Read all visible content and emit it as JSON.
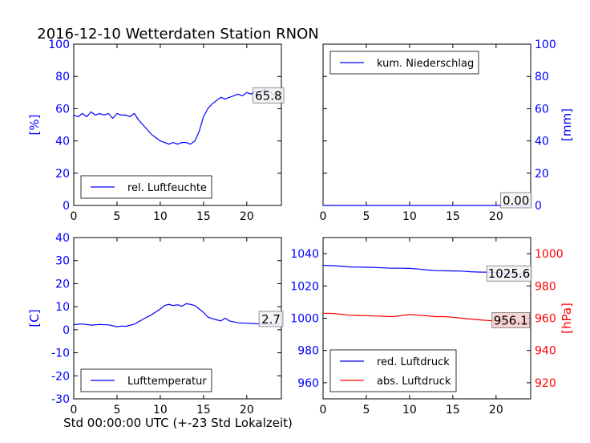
{
  "title": "2016-12-10 Wetterdaten Station RNON",
  "xlabel": "Std 00:00:00 UTC (+-23 Std Lokalzeit)",
  "colors": {
    "primary": "#0000ff",
    "secondary": "#ff0000",
    "axis": "#000000"
  },
  "chart_data": [
    {
      "type": "line",
      "panel": "top-left",
      "ylabel": "[%]",
      "xlim": [
        0,
        24
      ],
      "ylim": [
        0,
        100
      ],
      "xticks": [
        0,
        5,
        10,
        15,
        20
      ],
      "yticks": [
        0,
        20,
        40,
        60,
        80,
        100
      ],
      "legend": {
        "placement": "lower-left",
        "entries": [
          "rel. Luftfeuchte"
        ]
      },
      "annotation": {
        "text": "65.8",
        "x": 22.5,
        "y": 68
      },
      "series": [
        {
          "name": "rel. Luftfeuchte",
          "color": "#0000ff",
          "x": [
            0,
            0.5,
            1,
            1.5,
            2,
            2.5,
            3,
            3.5,
            4,
            4.5,
            5,
            5.5,
            6,
            6.5,
            7,
            7.5,
            8,
            8.5,
            9,
            9.5,
            10,
            10.5,
            11,
            11.5,
            12,
            12.5,
            13,
            13.5,
            14,
            14.5,
            15,
            15.5,
            16,
            16.5,
            17,
            17.5,
            18,
            18.5,
            19,
            19.5,
            20,
            20.5,
            21,
            21.5,
            22,
            22.5,
            23,
            23.5,
            24
          ],
          "y": [
            56,
            55,
            57,
            55,
            58,
            56,
            57,
            56,
            57,
            54,
            57,
            56,
            56,
            55,
            57,
            53,
            50,
            47,
            44,
            42,
            40,
            39,
            38,
            39,
            38,
            39,
            39,
            38,
            40,
            46,
            55,
            60,
            63,
            65,
            67,
            66,
            67,
            68,
            69,
            68,
            70,
            69,
            71,
            70,
            72,
            71,
            69,
            67,
            66
          ]
        }
      ]
    },
    {
      "type": "line",
      "panel": "top-right",
      "ylabel": "[mm]",
      "xlim": [
        0,
        24
      ],
      "ylim": [
        0,
        100
      ],
      "xticks": [
        0,
        5,
        10,
        15,
        20
      ],
      "yticks": [
        0,
        20,
        40,
        60,
        80,
        100
      ],
      "legend": {
        "placement": "upper-left",
        "entries": [
          "kum. Niederschlag"
        ]
      },
      "annotation": {
        "text": "0.00",
        "x": 22.3,
        "y": 3
      },
      "series": [
        {
          "name": "kum. Niederschlag",
          "color": "#0000ff",
          "x": [
            0,
            24
          ],
          "y": [
            0,
            0
          ]
        }
      ]
    },
    {
      "type": "line",
      "panel": "bottom-left",
      "ylabel": "[C]",
      "xlim": [
        0,
        24
      ],
      "ylim": [
        -30,
        40
      ],
      "xticks": [
        0,
        5,
        10,
        15,
        20
      ],
      "yticks": [
        -30,
        -20,
        -10,
        0,
        10,
        20,
        30,
        40
      ],
      "legend": {
        "placement": "lower-left",
        "entries": [
          "Lufttemperatur"
        ]
      },
      "annotation": {
        "text": "2.7",
        "x": 22.8,
        "y": 4.5
      },
      "series": [
        {
          "name": "Lufttemperatur",
          "color": "#0000ff",
          "x": [
            0,
            1,
            2,
            3,
            4,
            5,
            5.5,
            6,
            7,
            7.5,
            8,
            9,
            10,
            10.5,
            11,
            11.5,
            12,
            12.5,
            13,
            13.5,
            14,
            14.5,
            15,
            15.5,
            16,
            16.5,
            17,
            17.5,
            18,
            19,
            20,
            21,
            22,
            23,
            24
          ],
          "y": [
            2.2,
            2.5,
            2.0,
            2.3,
            2.1,
            1.3,
            1.6,
            1.5,
            2.4,
            3.5,
            4.5,
            6.5,
            9.0,
            10.5,
            11.0,
            10.5,
            10.8,
            10.2,
            11.3,
            11.0,
            10.5,
            9.0,
            7.5,
            5.5,
            4.8,
            4.3,
            3.8,
            5.0,
            3.8,
            3.0,
            2.8,
            2.6,
            2.5,
            2.4,
            2.5
          ]
        }
      ]
    },
    {
      "type": "line",
      "panel": "bottom-right",
      "ylabel": "[hPa]",
      "xlim": [
        0,
        24
      ],
      "ylim": [
        950,
        1050
      ],
      "y2lim": [
        910,
        1010
      ],
      "xticks": [
        0,
        5,
        10,
        15,
        20
      ],
      "yticks": [
        960,
        980,
        1000,
        1020,
        1040
      ],
      "y2ticks": [
        920,
        940,
        960,
        980,
        1000
      ],
      "legend": {
        "placement": "lower-left",
        "entries": [
          "red. Luftdruck",
          "abs. Luftdruck"
        ]
      },
      "annotations": [
        {
          "text": "1025.6",
          "x": 21.5,
          "y": 1027.5,
          "series": 0
        },
        {
          "text": "956.1",
          "x": 21.7,
          "y": 998.5,
          "series": 1
        }
      ],
      "series": [
        {
          "name": "red. Luftdruck",
          "color": "#0000ff",
          "axis": "left",
          "x": [
            0,
            1,
            2,
            3,
            4,
            5,
            6,
            7,
            8,
            9,
            10,
            11,
            12,
            13,
            14,
            15,
            16,
            17,
            18,
            19,
            20,
            21,
            22,
            23,
            24
          ],
          "y": [
            1032.8,
            1032.6,
            1032.3,
            1031.8,
            1031.7,
            1031.6,
            1031.5,
            1031.2,
            1031.0,
            1031.0,
            1030.9,
            1030.5,
            1029.9,
            1029.5,
            1029.4,
            1029.3,
            1029.2,
            1028.8,
            1028.6,
            1028.5,
            1028.3,
            1027.8,
            1027.4,
            1026.8,
            1026.5
          ]
        },
        {
          "name": "abs. Luftdruck",
          "color": "#ff0000",
          "axis": "right",
          "x": [
            0,
            1,
            2,
            3,
            4,
            5,
            6,
            7,
            8,
            9,
            10,
            11,
            12,
            13,
            14,
            15,
            16,
            17,
            18,
            19,
            20,
            21,
            22,
            23,
            24
          ],
          "y": [
            963.1,
            963.0,
            962.5,
            961.9,
            961.7,
            961.6,
            961.4,
            961.2,
            961.0,
            961.6,
            962.3,
            961.9,
            961.5,
            961.0,
            961.0,
            960.6,
            960.0,
            959.5,
            959.0,
            958.6,
            958.3,
            957.9,
            957.6,
            957.2,
            957.0
          ]
        }
      ]
    }
  ]
}
